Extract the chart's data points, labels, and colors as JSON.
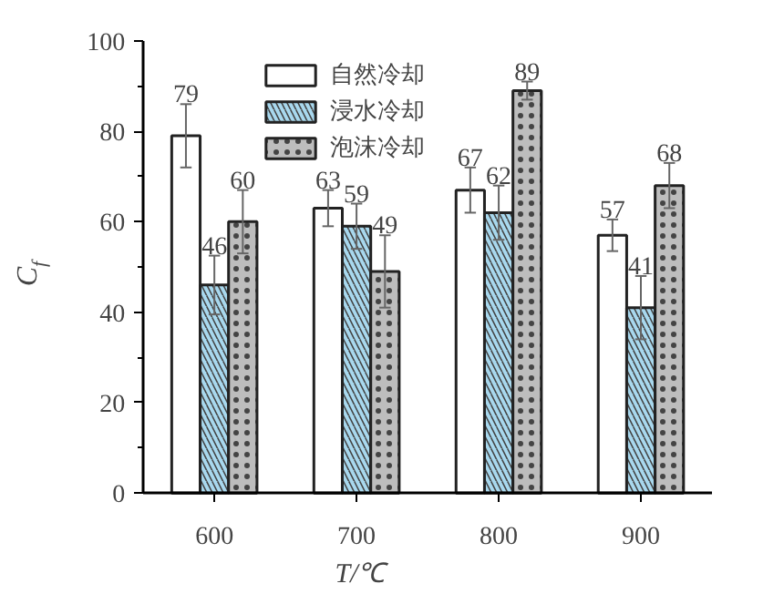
{
  "chart_data": {
    "type": "bar",
    "xlabel": "T/℃",
    "ylabel": "C$_{f}$",
    "categories": [
      "600",
      "700",
      "800",
      "900"
    ],
    "series": [
      {
        "name": "自然冷却",
        "color": "#ffffff",
        "values": [
          79,
          63,
          67,
          57
        ],
        "errors": [
          7,
          4,
          5,
          3.5
        ]
      },
      {
        "name": "浸水冷却",
        "color": "#a8d8ee",
        "values": [
          46,
          59,
          62,
          41
        ],
        "errors": [
          6.5,
          5,
          6,
          7
        ]
      },
      {
        "name": "泡沫冷却",
        "color": "#bdbdbd",
        "values": [
          60,
          49,
          89,
          68
        ],
        "errors": [
          7,
          8,
          2,
          5
        ]
      }
    ],
    "ylim": [
      0,
      100
    ],
    "yticks": [
      0,
      20,
      40,
      60,
      80,
      100
    ],
    "data_labels": true,
    "legend": "top",
    "grid": false
  }
}
